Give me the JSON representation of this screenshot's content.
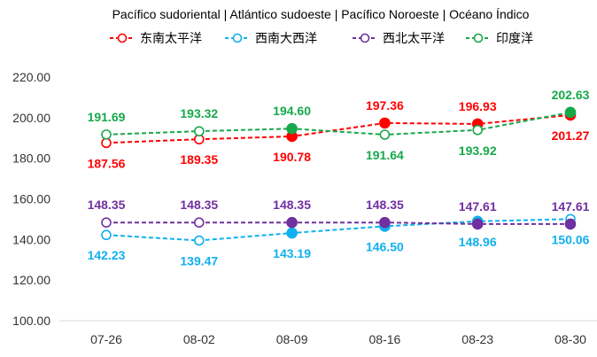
{
  "chart_data": {
    "type": "line",
    "title": "Pacífico sudoriental | Atlántico sudoeste | Pacífico Noroeste | Océano Índico",
    "categories": [
      "07-26",
      "08-02",
      "08-09",
      "08-16",
      "08-23",
      "08-30"
    ],
    "ylim": [
      100,
      220
    ],
    "yticks": [
      "100.00",
      "120.00",
      "140.00",
      "160.00",
      "180.00",
      "200.00",
      "220.00"
    ],
    "grid": false,
    "legend_position": "top",
    "series": [
      {
        "name": "东南太平洋",
        "color": "#ff0000",
        "values": [
          187.56,
          189.35,
          190.78,
          197.36,
          196.93,
          201.27
        ],
        "labels": [
          "187.56",
          "189.35",
          "190.78",
          "197.36",
          "196.93",
          "201.27"
        ]
      },
      {
        "name": "西南大西洋",
        "color": "#11b0ef",
        "values": [
          142.23,
          139.47,
          143.19,
          146.5,
          148.96,
          150.06
        ],
        "labels": [
          "142.23",
          "139.47",
          "143.19",
          "146.50",
          "148.96",
          "150.06"
        ]
      },
      {
        "name": "西北太平洋",
        "color": "#7030a0",
        "values": [
          148.35,
          148.35,
          148.35,
          148.35,
          147.61,
          147.61
        ],
        "labels": [
          "148.35",
          "148.35",
          "148.35",
          "148.35",
          "147.61",
          "147.61"
        ]
      },
      {
        "name": "印度洋",
        "color": "#17a84b",
        "values": [
          191.69,
          193.32,
          194.6,
          191.64,
          193.92,
          202.63
        ],
        "labels": [
          "191.69",
          "193.32",
          "194.60",
          "191.64",
          "193.92",
          "202.63"
        ]
      }
    ]
  }
}
